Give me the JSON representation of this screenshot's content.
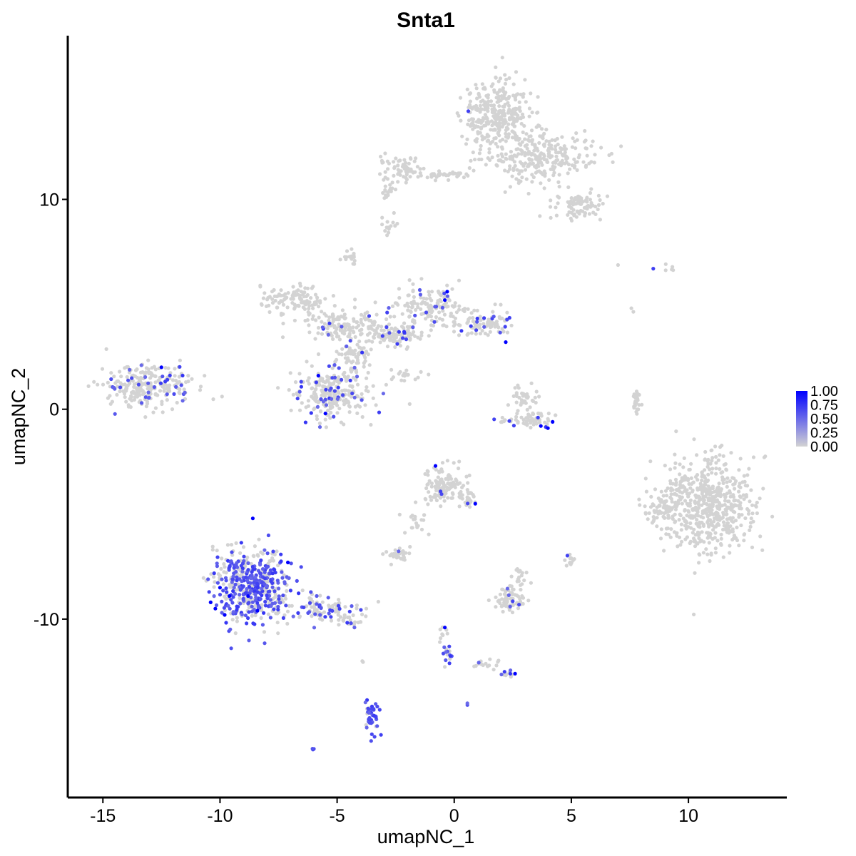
{
  "chart_data": {
    "type": "scatter",
    "title": "Snta1",
    "xlabel": "umapNC_1",
    "ylabel": "umapNC_2",
    "xlim": [
      -16.5,
      14.2
    ],
    "ylim": [
      -18.5,
      17.8
    ],
    "x_ticks": [
      -15,
      -10,
      -5,
      0,
      5,
      10
    ],
    "x_tick_labels": [
      "-15",
      "-10",
      "-5",
      "0",
      "5",
      "10"
    ],
    "y_ticks": [
      -10,
      0,
      10
    ],
    "y_tick_labels": [
      "-10",
      "0",
      "10"
    ],
    "grid": false,
    "legend": {
      "placement": "right",
      "type": "colorbar",
      "labels": [
        "1.00",
        "0.75",
        "0.50",
        "0.25",
        "0.00"
      ],
      "values": [
        1.0,
        0.75,
        0.5,
        0.25,
        0.0
      ],
      "low_color": "#d3d3d3",
      "high_color": "#0000ff"
    },
    "colors": {
      "low": "#d3d3d3",
      "high": "#0000ff",
      "axis": "#000000"
    },
    "clusters": [
      {
        "cx": 1.8,
        "cy": 14.0,
        "rx": 1.3,
        "ry": 1.6,
        "n": 320,
        "expr_frac": 0.0
      },
      {
        "cx": 3.6,
        "cy": 12.0,
        "rx": 2.2,
        "ry": 1.0,
        "n": 260,
        "expr_frac": 0.0
      },
      {
        "cx": 5.3,
        "cy": 9.7,
        "rx": 0.9,
        "ry": 0.6,
        "n": 90,
        "expr_frac": 0.0
      },
      {
        "cx": -2.2,
        "cy": 11.5,
        "rx": 0.9,
        "ry": 0.5,
        "n": 60,
        "expr_frac": 0.01
      },
      {
        "cx": -0.3,
        "cy": 11.2,
        "rx": 1.3,
        "ry": 0.15,
        "n": 40,
        "expr_frac": 0.0
      },
      {
        "cx": -2.8,
        "cy": 10.5,
        "rx": 0.3,
        "ry": 0.6,
        "n": 20,
        "expr_frac": 0.0
      },
      {
        "cx": -2.8,
        "cy": 8.8,
        "rx": 0.3,
        "ry": 0.4,
        "n": 15,
        "expr_frac": 0.0
      },
      {
        "cx": -13.0,
        "cy": 1.1,
        "rx": 1.7,
        "ry": 0.9,
        "n": 260,
        "expr_frac": 0.08
      },
      {
        "cx": -6.8,
        "cy": 5.2,
        "rx": 1.3,
        "ry": 0.6,
        "n": 110,
        "expr_frac": 0.0
      },
      {
        "cx": -4.6,
        "cy": 4.0,
        "rx": 1.6,
        "ry": 0.6,
        "n": 150,
        "expr_frac": 0.07
      },
      {
        "cx": -1.0,
        "cy": 4.8,
        "rx": 1.5,
        "ry": 1.0,
        "n": 150,
        "expr_frac": 0.1
      },
      {
        "cx": 1.3,
        "cy": 4.1,
        "rx": 1.0,
        "ry": 0.6,
        "n": 90,
        "expr_frac": 0.09
      },
      {
        "cx": -2.5,
        "cy": 3.5,
        "rx": 1.0,
        "ry": 0.5,
        "n": 90,
        "expr_frac": 0.12
      },
      {
        "cx": -5.2,
        "cy": 0.8,
        "rx": 1.4,
        "ry": 1.1,
        "n": 260,
        "expr_frac": 0.15
      },
      {
        "cx": -4.2,
        "cy": 2.5,
        "rx": 0.6,
        "ry": 0.6,
        "n": 60,
        "expr_frac": 0.1
      },
      {
        "cx": -4.4,
        "cy": 7.2,
        "rx": 0.3,
        "ry": 0.3,
        "n": 15,
        "expr_frac": 0.0
      },
      {
        "cx": -2.0,
        "cy": 1.6,
        "rx": 0.6,
        "ry": 0.3,
        "n": 20,
        "expr_frac": 0.0
      },
      {
        "cx": 3.0,
        "cy": 0.5,
        "rx": 0.5,
        "ry": 0.6,
        "n": 40,
        "expr_frac": 0.0
      },
      {
        "cx": 3.2,
        "cy": -0.5,
        "rx": 1.2,
        "ry": 0.3,
        "n": 60,
        "expr_frac": 0.07
      },
      {
        "cx": 7.8,
        "cy": 0.3,
        "rx": 0.2,
        "ry": 0.6,
        "n": 25,
        "expr_frac": 0.0
      },
      {
        "cx": 10.8,
        "cy": -4.5,
        "rx": 1.8,
        "ry": 2.0,
        "n": 600,
        "expr_frac": 0.0
      },
      {
        "cx": 8.9,
        "cy": -4.8,
        "rx": 0.6,
        "ry": 0.6,
        "n": 40,
        "expr_frac": 0.0
      },
      {
        "cx": -0.4,
        "cy": -3.6,
        "rx": 0.8,
        "ry": 0.8,
        "n": 120,
        "expr_frac": 0.02
      },
      {
        "cx": 0.6,
        "cy": -4.3,
        "rx": 0.4,
        "ry": 0.4,
        "n": 25,
        "expr_frac": 0.04
      },
      {
        "cx": -1.6,
        "cy": -5.3,
        "rx": 0.5,
        "ry": 0.6,
        "n": 20,
        "expr_frac": 0.0
      },
      {
        "cx": -2.4,
        "cy": -6.9,
        "rx": 0.5,
        "ry": 0.3,
        "n": 30,
        "expr_frac": 0.06
      },
      {
        "cx": 2.4,
        "cy": -9.1,
        "rx": 0.6,
        "ry": 0.5,
        "n": 70,
        "expr_frac": 0.02
      },
      {
        "cx": 2.8,
        "cy": -8.0,
        "rx": 0.3,
        "ry": 0.4,
        "n": 20,
        "expr_frac": 0.0
      },
      {
        "cx": 5.0,
        "cy": -7.3,
        "rx": 0.2,
        "ry": 0.3,
        "n": 12,
        "expr_frac": 0.05
      },
      {
        "cx": -8.6,
        "cy": -8.4,
        "rx": 1.5,
        "ry": 1.6,
        "n": 500,
        "expr_frac": 0.55
      },
      {
        "cx": -5.6,
        "cy": -9.5,
        "rx": 1.3,
        "ry": 0.5,
        "n": 90,
        "expr_frac": 0.3
      },
      {
        "cx": -4.3,
        "cy": -10.1,
        "rx": 0.5,
        "ry": 0.3,
        "n": 20,
        "expr_frac": 0.1
      },
      {
        "cx": -3.5,
        "cy": -14.6,
        "rx": 0.25,
        "ry": 0.8,
        "n": 40,
        "expr_frac": 0.85
      },
      {
        "cx": -0.3,
        "cy": -11.8,
        "rx": 0.2,
        "ry": 0.4,
        "n": 15,
        "expr_frac": 0.6
      },
      {
        "cx": -0.5,
        "cy": -10.8,
        "rx": 0.15,
        "ry": 0.4,
        "n": 8,
        "expr_frac": 0.1
      },
      {
        "cx": 1.2,
        "cy": -12.1,
        "rx": 0.6,
        "ry": 0.2,
        "n": 15,
        "expr_frac": 0.1
      },
      {
        "cx": 2.2,
        "cy": -12.6,
        "rx": 0.3,
        "ry": 0.15,
        "n": 10,
        "expr_frac": 0.4
      },
      {
        "cx": -6.0,
        "cy": -16.2,
        "rx": 0.1,
        "ry": 0.1,
        "n": 3,
        "expr_frac": 0.9
      },
      {
        "cx": 0.6,
        "cy": -14.0,
        "rx": 0.08,
        "ry": 0.08,
        "n": 2,
        "expr_frac": 0.5
      },
      {
        "cx": -3.9,
        "cy": -12.0,
        "rx": 0.1,
        "ry": 0.1,
        "n": 2,
        "expr_frac": 0.0
      },
      {
        "cx": 9.3,
        "cy": 6.7,
        "rx": 0.3,
        "ry": 0.2,
        "n": 5,
        "expr_frac": 0.0
      },
      {
        "cx": 7.0,
        "cy": 6.9,
        "rx": 0.05,
        "ry": 0.05,
        "n": 1,
        "expr_frac": 0.0
      },
      {
        "cx": 7.6,
        "cy": 4.8,
        "rx": 0.1,
        "ry": 0.2,
        "n": 2,
        "expr_frac": 0.0
      }
    ],
    "high_points": [
      {
        "x": -12.5,
        "y": 2.0,
        "v": 1.0
      },
      {
        "x": -5.8,
        "y": 1.6,
        "v": 1.0
      },
      {
        "x": -5.5,
        "y": -0.2,
        "v": 1.0
      },
      {
        "x": -0.3,
        "y": 5.6,
        "v": 1.0
      },
      {
        "x": -0.4,
        "y": 5.2,
        "v": 1.0
      },
      {
        "x": 2.2,
        "y": 3.2,
        "v": 1.0
      },
      {
        "x": 3.7,
        "y": -0.8,
        "v": 1.0
      },
      {
        "x": 4.0,
        "y": -0.9,
        "v": 1.0
      },
      {
        "x": 4.2,
        "y": -0.6,
        "v": 1.0
      },
      {
        "x": -0.8,
        "y": -2.7,
        "v": 1.0
      },
      {
        "x": 0.9,
        "y": -4.5,
        "v": 1.0
      },
      {
        "x": -8.6,
        "y": -5.2,
        "v": 1.0
      },
      {
        "x": -7.1,
        "y": -7.3,
        "v": 1.0
      },
      {
        "x": -9.8,
        "y": -9.8,
        "v": 1.0
      },
      {
        "x": -10.4,
        "y": -9.2,
        "v": 1.0
      },
      {
        "x": -10.2,
        "y": -9.5,
        "v": 1.0
      },
      {
        "x": -9.6,
        "y": -8.9,
        "v": 1.0
      },
      {
        "x": -8.8,
        "y": -8.9,
        "v": 1.0
      },
      {
        "x": -8.4,
        "y": -9.6,
        "v": 1.0
      },
      {
        "x": -10.0,
        "y": -8.5,
        "v": 1.0
      },
      {
        "x": -0.4,
        "y": -10.4,
        "v": 1.0
      },
      {
        "x": 2.6,
        "y": -12.6,
        "v": 1.0
      },
      {
        "x": 0.6,
        "y": 14.2,
        "v": 0.7
      },
      {
        "x": 8.5,
        "y": 6.7,
        "v": 0.7
      }
    ]
  }
}
